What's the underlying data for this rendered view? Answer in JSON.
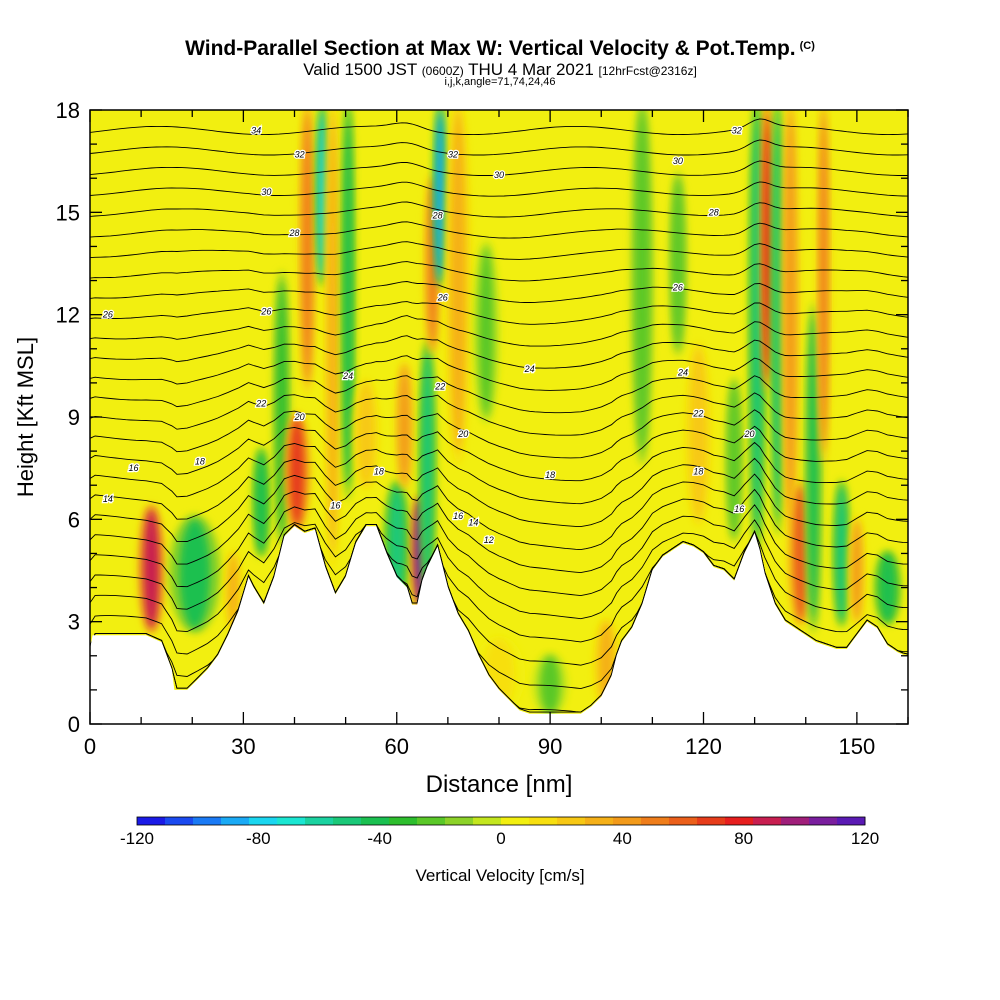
{
  "header": {
    "title": "Wind-Parallel Section at Max W: Vertical Velocity & Pot.Temp.",
    "copyright": "(C)",
    "valid_prefix": "Valid 1500 JST",
    "valid_utc": "(0600Z)",
    "valid_date": "THU 4 Mar 2021",
    "forecast": "[12hrFcst@2316z]",
    "indices": "i,j,k,angle=71,74,24,46"
  },
  "colors": {
    "terrain": "#ffffff",
    "frame": "#000000",
    "background_field": "#f2ef10"
  },
  "chart_data": {
    "type": "heatmap",
    "xlabel": "Distance [nm]",
    "ylabel": "Height [Kft MSL]",
    "xlim": [
      0,
      160
    ],
    "ylim": [
      0,
      18
    ],
    "x_ticks": [
      0,
      30,
      60,
      90,
      120,
      150
    ],
    "x_tick_labels": [
      "0",
      "30",
      "60",
      "90",
      "120",
      "150"
    ],
    "y_ticks": [
      0,
      3,
      6,
      9,
      12,
      15,
      18
    ],
    "y_tick_labels": [
      "0",
      "3",
      "6",
      "9",
      "12",
      "15",
      "18"
    ],
    "colorbar": {
      "label": "Vertical Velocity [cm/s]",
      "range": [
        -120,
        120
      ],
      "tick_values": [
        -120,
        -80,
        -40,
        0,
        40,
        80,
        120
      ],
      "tick_labels": [
        "-120",
        "-80",
        "-40",
        "0",
        "40",
        "80",
        "120"
      ],
      "colors": [
        "#1a1ae6",
        "#1a4af0",
        "#1a7af5",
        "#1aaaf5",
        "#1ad6f0",
        "#1ae6d2",
        "#1ad2a0",
        "#1ac878",
        "#1ac050",
        "#2dbe2d",
        "#5ac828",
        "#8cd228",
        "#c3e61e",
        "#f2ef10",
        "#f7df10",
        "#f7c814",
        "#f5b018",
        "#f29a1a",
        "#ef7d1a",
        "#eb5f1a",
        "#e63c1a",
        "#e61e1e",
        "#c81e50",
        "#a01e7a",
        "#7a1e9e",
        "#5a1ab4"
      ]
    },
    "terrain_profile": {
      "x": [
        0,
        0.5,
        4,
        9,
        11,
        14,
        16,
        16.5,
        19,
        21,
        23,
        25,
        27,
        29,
        31,
        32,
        34,
        36,
        38,
        40,
        42,
        44,
        46,
        48,
        50,
        52,
        54,
        56,
        58,
        60,
        62,
        63,
        64,
        65,
        66,
        68,
        70,
        72,
        74,
        76,
        78,
        80,
        82,
        84,
        86,
        88,
        90,
        92,
        94,
        96,
        98,
        100,
        102,
        103,
        104,
        106,
        108,
        110,
        112,
        114,
        116,
        118,
        120,
        122,
        124,
        126,
        128,
        129,
        130,
        131,
        132,
        134,
        136,
        138,
        140,
        142,
        144,
        146,
        148,
        150,
        152,
        154,
        156,
        158,
        159.5,
        160
      ],
      "height": [
        2.2,
        2.6,
        2.6,
        2.6,
        2.6,
        2.4,
        1.6,
        1.0,
        1.0,
        1.3,
        1.6,
        2.0,
        2.6,
        3.3,
        4.3,
        4.0,
        3.5,
        4.3,
        5.5,
        5.8,
        5.6,
        5.7,
        4.6,
        3.8,
        4.3,
        5.3,
        5.8,
        5.8,
        5.0,
        4.3,
        4.0,
        3.5,
        3.5,
        4.2,
        4.6,
        5.2,
        4.0,
        3.2,
        2.7,
        2.0,
        1.4,
        1.0,
        0.7,
        0.4,
        0.3,
        0.3,
        0.3,
        0.3,
        0.3,
        0.3,
        0.5,
        0.8,
        1.4,
        2.0,
        2.4,
        2.8,
        3.5,
        4.5,
        4.9,
        5.1,
        5.3,
        5.2,
        5.0,
        4.6,
        4.5,
        4.2,
        5.0,
        5.3,
        5.6,
        5.1,
        4.4,
        3.5,
        3.0,
        2.8,
        2.6,
        2.4,
        2.3,
        2.2,
        2.2,
        2.6,
        3.0,
        2.8,
        2.3,
        2.1,
        2.0,
        2.0
      ]
    },
    "w_features": [
      {
        "x": 12,
        "z0": 2.8,
        "z1": 6.3,
        "w": 85,
        "width": 3
      },
      {
        "x": 20.5,
        "z0": 2.8,
        "z1": 6.0,
        "w": -40,
        "width": 6
      },
      {
        "x": 28,
        "z0": 2.8,
        "z1": 5.0,
        "w": 35,
        "width": 2
      },
      {
        "x": 33.5,
        "z0": 5.0,
        "z1": 8.0,
        "w": -45,
        "width": 2
      },
      {
        "x": 37.5,
        "z0": 5.5,
        "z1": 13,
        "w": -35,
        "width": 2
      },
      {
        "x": 40.5,
        "z0": 5.8,
        "z1": 9,
        "w": 65,
        "width": 3
      },
      {
        "x": 42.5,
        "z0": 10,
        "z1": 18,
        "w": 55,
        "width": 2
      },
      {
        "x": 45.5,
        "z0": 13,
        "z1": 18,
        "w": -75,
        "width": 1.5
      },
      {
        "x": 47.5,
        "z0": 5,
        "z1": 18,
        "w": 35,
        "width": 2
      },
      {
        "x": 50.5,
        "z0": 7,
        "z1": 18,
        "w": -45,
        "width": 1.5
      },
      {
        "x": 54,
        "z0": 7,
        "z1": 10,
        "w": 25,
        "width": 3
      },
      {
        "x": 60,
        "z0": 3.5,
        "z1": 7.0,
        "w": -50,
        "width": 3
      },
      {
        "x": 61.5,
        "z0": 7,
        "z1": 10.5,
        "w": 45,
        "width": 2
      },
      {
        "x": 64.5,
        "z0": 3.5,
        "z1": 6.6,
        "w": 110,
        "width": 2
      },
      {
        "x": 66,
        "z0": 4,
        "z1": 11,
        "w": -55,
        "width": 2
      },
      {
        "x": 67,
        "z0": 11,
        "z1": 16,
        "w": 55,
        "width": 2
      },
      {
        "x": 68.5,
        "z0": 13,
        "z1": 18,
        "w": -85,
        "width": 1.5
      },
      {
        "x": 72,
        "z0": 8,
        "z1": 18,
        "w": 30,
        "width": 3
      },
      {
        "x": 77.5,
        "z0": 9,
        "z1": 14,
        "w": -20,
        "width": 3
      },
      {
        "x": 80,
        "z0": 0.4,
        "z1": 2.5,
        "w": 15,
        "width": 6
      },
      {
        "x": 90,
        "z0": 0.3,
        "z1": 2.0,
        "w": -20,
        "width": 4
      },
      {
        "x": 101,
        "z0": 0.5,
        "z1": 3.0,
        "w": 35,
        "width": 3
      },
      {
        "x": 108,
        "z0": 8,
        "z1": 18,
        "w": -22,
        "width": 2.5
      },
      {
        "x": 115,
        "z0": 11,
        "z1": 16,
        "w": -25,
        "width": 2
      },
      {
        "x": 119,
        "z0": 6,
        "z1": 11,
        "w": 22,
        "width": 3
      },
      {
        "x": 126,
        "z0": 5.5,
        "z1": 10,
        "w": -25,
        "width": 2
      },
      {
        "x": 130.5,
        "z0": 5.5,
        "z1": 18,
        "w": -50,
        "width": 2
      },
      {
        "x": 132.5,
        "z0": 10,
        "z1": 18,
        "w": 80,
        "width": 1.5
      },
      {
        "x": 134.5,
        "z0": 6,
        "z1": 18,
        "w": -55,
        "width": 1.5
      },
      {
        "x": 137,
        "z0": 6,
        "z1": 18,
        "w": 45,
        "width": 2
      },
      {
        "x": 139,
        "z0": 3,
        "z1": 7,
        "w": 60,
        "width": 3
      },
      {
        "x": 141.5,
        "z0": 3,
        "z1": 12,
        "w": -40,
        "width": 2
      },
      {
        "x": 143.5,
        "z0": 8,
        "z1": 18,
        "w": 50,
        "width": 1.5
      },
      {
        "x": 147,
        "z0": 3,
        "z1": 7,
        "w": -50,
        "width": 2
      },
      {
        "x": 150,
        "z0": 3,
        "z1": 6,
        "w": 40,
        "width": 2
      },
      {
        "x": 156,
        "z0": 3,
        "z1": 5,
        "w": -45,
        "width": 3
      }
    ],
    "theta_contours": {
      "levels": [
        8,
        9,
        10,
        11,
        12,
        13,
        14,
        15,
        16,
        17,
        18,
        19,
        20,
        21,
        22,
        23,
        24,
        25,
        26,
        27,
        28,
        29,
        30,
        31,
        32,
        33,
        34,
        35
      ],
      "labels": [
        {
          "text": "12",
          "x": 78,
          "z": 5.4
        },
        {
          "text": "14",
          "x": 3.5,
          "z": 6.6
        },
        {
          "text": "14",
          "x": 75,
          "z": 5.9
        },
        {
          "text": "16",
          "x": 8.5,
          "z": 7.5
        },
        {
          "text": "16",
          "x": 48,
          "z": 6.4
        },
        {
          "text": "16",
          "x": 72,
          "z": 6.1
        },
        {
          "text": "16",
          "x": 127,
          "z": 6.3
        },
        {
          "text": "18",
          "x": 21.5,
          "z": 7.7
        },
        {
          "text": "18",
          "x": 56.5,
          "z": 7.4
        },
        {
          "text": "18",
          "x": 90,
          "z": 7.3
        },
        {
          "text": "18",
          "x": 119,
          "z": 7.4
        },
        {
          "text": "20",
          "x": 41,
          "z": 9.0
        },
        {
          "text": "20",
          "x": 73,
          "z": 8.5
        },
        {
          "text": "20",
          "x": 129,
          "z": 8.5
        },
        {
          "text": "22",
          "x": 33.5,
          "z": 9.4
        },
        {
          "text": "22",
          "x": 68.5,
          "z": 9.9
        },
        {
          "text": "22",
          "x": 119,
          "z": 9.1
        },
        {
          "text": "24",
          "x": 50.5,
          "z": 10.2
        },
        {
          "text": "24",
          "x": 86,
          "z": 10.4
        },
        {
          "text": "24",
          "x": 116,
          "z": 10.3
        },
        {
          "text": "26",
          "x": 3.5,
          "z": 12.0
        },
        {
          "text": "26",
          "x": 34.5,
          "z": 12.1
        },
        {
          "text": "26",
          "x": 69,
          "z": 12.5
        },
        {
          "text": "26",
          "x": 115,
          "z": 12.8
        },
        {
          "text": "28",
          "x": 40,
          "z": 14.4
        },
        {
          "text": "28",
          "x": 68,
          "z": 14.9
        },
        {
          "text": "28",
          "x": 122,
          "z": 15.0
        },
        {
          "text": "30",
          "x": 34.5,
          "z": 15.6
        },
        {
          "text": "30",
          "x": 80,
          "z": 16.1
        },
        {
          "text": "30",
          "x": 115,
          "z": 16.5
        },
        {
          "text": "32",
          "x": 41,
          "z": 16.7
        },
        {
          "text": "32",
          "x": 71,
          "z": 16.7
        },
        {
          "text": "32",
          "x": 126.5,
          "z": 17.4
        },
        {
          "text": "34",
          "x": 32.5,
          "z": 17.4
        }
      ]
    }
  }
}
